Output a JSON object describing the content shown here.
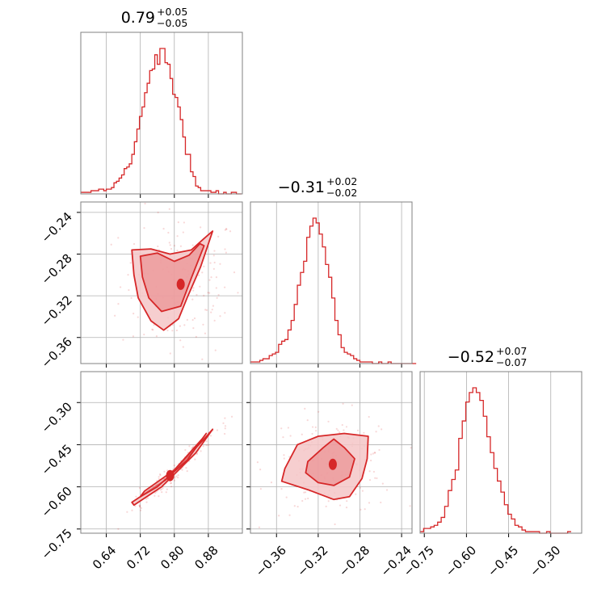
{
  "chart_data": {
    "type": "corner",
    "colors": {
      "line": "#d62728",
      "fill": "#f4c6c7",
      "fill_dark": "#e77f81",
      "grid": "#b0b0b0",
      "frame": "#808080"
    },
    "grid": true,
    "parameters": [
      {
        "median": "0.79",
        "plus": "+0.05",
        "minus": "−0.05",
        "range": [
          0.58,
          0.96
        ],
        "ticks": [
          {
            "v": 0.64,
            "label": "0.64"
          },
          {
            "v": 0.72,
            "label": "0.72"
          },
          {
            "v": 0.8,
            "label": "0.80"
          },
          {
            "v": 0.88,
            "label": "0.88"
          }
        ]
      },
      {
        "median": "−0.31",
        "plus": "+0.02",
        "minus": "−0.02",
        "range": [
          -0.385,
          -0.23
        ],
        "ticks": [
          {
            "v": -0.36,
            "label": "−0.36"
          },
          {
            "v": -0.32,
            "label": "−0.32"
          },
          {
            "v": -0.28,
            "label": "−0.28"
          },
          {
            "v": -0.24,
            "label": "−0.24"
          }
        ]
      },
      {
        "median": "−0.52",
        "plus": "+0.07",
        "minus": "−0.07",
        "range": [
          -0.765,
          -0.19
        ],
        "ticks": [
          {
            "v": -0.75,
            "label": "−0.75"
          },
          {
            "v": -0.6,
            "label": "−0.60"
          },
          {
            "v": -0.45,
            "label": "−0.45"
          },
          {
            "v": -0.3,
            "label": "−0.30"
          }
        ]
      }
    ],
    "histograms": [
      {
        "param": 0,
        "bin_start": 0.58,
        "bin_width": 0.006,
        "values": [
          1,
          1,
          1,
          1,
          2,
          2,
          2,
          3,
          3,
          2,
          3,
          3,
          4,
          7,
          8,
          10,
          12,
          16,
          17,
          19,
          25,
          33,
          41,
          49,
          55,
          64,
          70,
          78,
          79,
          88,
          82,
          92,
          92,
          83,
          82,
          73,
          63,
          61,
          55,
          47,
          36,
          25,
          25,
          14,
          11,
          5,
          4,
          2,
          2,
          2,
          2,
          1,
          1,
          2,
          0,
          0,
          1,
          0,
          0,
          1,
          1,
          0,
          0
        ]
      },
      {
        "param": 1,
        "bin_start": -0.385,
        "bin_width": 0.003,
        "values": [
          1,
          1,
          1,
          2,
          3,
          3,
          5,
          6,
          7,
          12,
          14,
          15,
          21,
          27,
          37,
          49,
          57,
          64,
          79,
          86,
          91,
          88,
          81,
          73,
          62,
          54,
          41,
          27,
          18,
          10,
          7,
          6,
          5,
          3,
          2,
          1,
          1,
          1,
          1,
          0,
          0,
          1,
          0,
          0,
          1,
          0,
          0,
          0,
          0,
          0,
          0,
          0,
          0
        ]
      },
      {
        "param": 2,
        "bin_start": -0.765,
        "bin_width": 0.0125,
        "values": [
          1,
          3,
          3,
          4,
          5,
          7,
          10,
          17,
          27,
          34,
          40,
          60,
          71,
          83,
          89,
          92,
          89,
          84,
          74,
          61,
          51,
          41,
          33,
          26,
          18,
          12,
          9,
          5,
          4,
          2,
          1,
          1,
          1,
          1,
          0,
          0,
          1,
          0,
          0,
          0,
          0,
          0,
          1
        ]
      }
    ],
    "density_2d": [
      {
        "x_param": 0,
        "y_param": 1,
        "level_68": [
          [
            0.72,
            -0.282
          ],
          [
            0.76,
            -0.279
          ],
          [
            0.8,
            -0.287
          ],
          [
            0.835,
            -0.281
          ],
          [
            0.86,
            -0.27
          ],
          [
            0.87,
            -0.272
          ],
          [
            0.84,
            -0.303
          ],
          [
            0.815,
            -0.33
          ],
          [
            0.77,
            -0.335
          ],
          [
            0.74,
            -0.322
          ],
          [
            0.725,
            -0.302
          ]
        ],
        "level_95": [
          [
            0.7,
            -0.276
          ],
          [
            0.745,
            -0.275
          ],
          [
            0.79,
            -0.28
          ],
          [
            0.84,
            -0.276
          ],
          [
            0.87,
            -0.265
          ],
          [
            0.89,
            -0.258
          ],
          [
            0.862,
            -0.292
          ],
          [
            0.83,
            -0.322
          ],
          [
            0.81,
            -0.342
          ],
          [
            0.775,
            -0.353
          ],
          [
            0.745,
            -0.344
          ],
          [
            0.715,
            -0.322
          ],
          [
            0.705,
            -0.3
          ]
        ],
        "peak": [
          0.815,
          -0.309
        ]
      },
      {
        "x_param": 0,
        "y_param": 2,
        "level_68": [
          [
            0.73,
            -0.615
          ],
          [
            0.8,
            -0.54
          ],
          [
            0.865,
            -0.43
          ],
          [
            0.875,
            -0.41
          ],
          [
            0.83,
            -0.505
          ],
          [
            0.76,
            -0.6
          ],
          [
            0.72,
            -0.635
          ]
        ],
        "level_95": [
          [
            0.7,
            -0.655
          ],
          [
            0.78,
            -0.575
          ],
          [
            0.87,
            -0.43
          ],
          [
            0.89,
            -0.395
          ],
          [
            0.85,
            -0.48
          ],
          [
            0.77,
            -0.6
          ],
          [
            0.705,
            -0.665
          ]
        ],
        "peak": [
          0.79,
          -0.56
        ]
      },
      {
        "x_param": 1,
        "y_param": 2,
        "level_68": [
          [
            -0.33,
            -0.51
          ],
          [
            -0.315,
            -0.46
          ],
          [
            -0.305,
            -0.43
          ],
          [
            -0.295,
            -0.46
          ],
          [
            -0.285,
            -0.5
          ],
          [
            -0.29,
            -0.565
          ],
          [
            -0.305,
            -0.595
          ],
          [
            -0.32,
            -0.585
          ],
          [
            -0.332,
            -0.55
          ]
        ],
        "level_95": [
          [
            -0.352,
            -0.535
          ],
          [
            -0.34,
            -0.45
          ],
          [
            -0.32,
            -0.42
          ],
          [
            -0.295,
            -0.41
          ],
          [
            -0.272,
            -0.42
          ],
          [
            -0.273,
            -0.5
          ],
          [
            -0.278,
            -0.57
          ],
          [
            -0.29,
            -0.635
          ],
          [
            -0.305,
            -0.645
          ],
          [
            -0.33,
            -0.61
          ],
          [
            -0.355,
            -0.58
          ]
        ],
        "peak": [
          -0.306,
          -0.52
        ]
      }
    ]
  }
}
